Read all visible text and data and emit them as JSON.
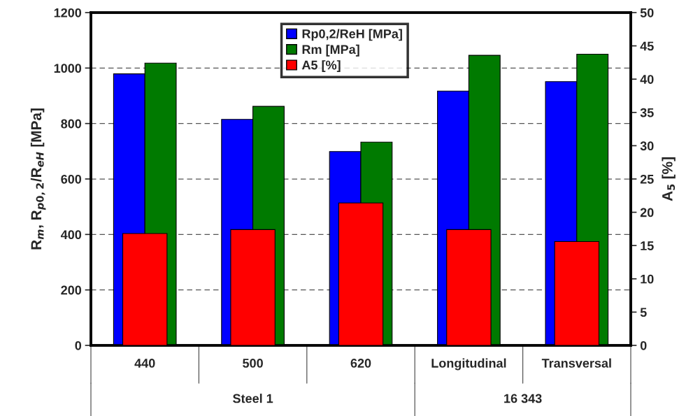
{
  "chart_data": {
    "type": "bar",
    "categories": [
      "440",
      "500",
      "620",
      "Longitudinal",
      "Transversal"
    ],
    "series": [
      {
        "name": "Rp0,2/ReH [MPa]",
        "color": "#0000ff",
        "values": [
          979,
          815,
          699,
          917,
          951
        ]
      },
      {
        "name": "Rm [MPa]",
        "color": "#007a00",
        "values": [
          1018,
          862,
          733,
          1046,
          1050
        ]
      },
      {
        "name": "A5 [%]",
        "color": "#ff0000",
        "axis": "y2",
        "values": [
          16.8,
          17.4,
          21.4,
          17.4,
          15.6
        ]
      }
    ],
    "ylabel": "R$_{m}$, R$_{p0,2}$/R$_{eH}$ [MPa]",
    "y2label": "A$_{5}$ [%]",
    "ylim": [
      0,
      1200
    ],
    "yticks": [
      0,
      200,
      400,
      600,
      800,
      1000,
      1200
    ],
    "y2lim": [
      0,
      50
    ],
    "y2ticks": [
      0,
      5,
      10,
      15,
      20,
      25,
      30,
      35,
      40,
      45,
      50
    ],
    "annotations": [
      "Steel 1",
      "16 343"
    ],
    "grid": "y",
    "legend": "top"
  }
}
